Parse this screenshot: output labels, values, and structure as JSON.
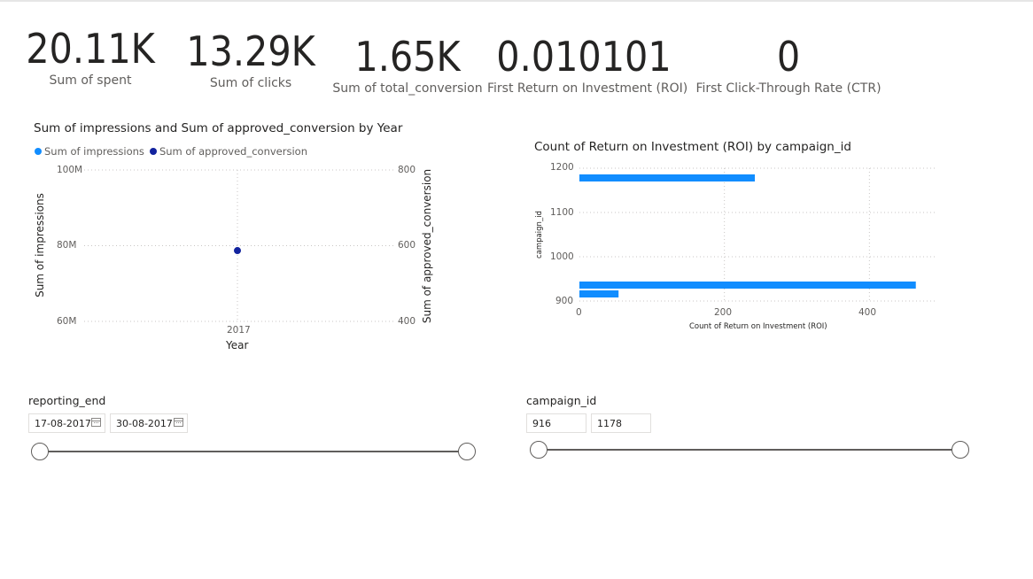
{
  "kpis": [
    {
      "value": "20.11K",
      "label": "Sum of spent"
    },
    {
      "value": "13.29K",
      "label": "Sum of clicks"
    },
    {
      "value": "1.65K",
      "label": "Sum of total_conversion"
    },
    {
      "value": "0.010101",
      "label": "First Return on Investment (ROI)"
    },
    {
      "value": "0",
      "label": "First Click-Through Rate (CTR)"
    }
  ],
  "colors": {
    "series1": "#118dff",
    "series2": "#12239e",
    "grid": "#c8c6c4"
  },
  "chart_data": [
    {
      "type": "scatter",
      "title": "Sum of impressions and Sum of approved_conversion by Year",
      "legend": [
        "Sum of impressions",
        "Sum of approved_conversion"
      ],
      "legend_position": "top-left",
      "xlabel": "Year",
      "ylabel": "Sum of impressions",
      "y2label": "Sum of approved_conversion",
      "x": [
        "2017"
      ],
      "yticks": [
        "100M",
        "80M",
        "60M"
      ],
      "y2ticks": [
        "800",
        "600",
        "400"
      ],
      "ylim": [
        60000000,
        100000000
      ],
      "y2lim": [
        400,
        800
      ],
      "series": [
        {
          "name": "Sum of impressions",
          "values": [
            null
          ]
        },
        {
          "name": "Sum of approved_conversion",
          "values": [
            587
          ]
        }
      ],
      "grid": true
    },
    {
      "type": "bar",
      "orientation": "horizontal",
      "title": "Count of Return on Investment (ROI) by campaign_id",
      "xlabel": "Count of Return on Investment (ROI)",
      "ylabel": "campaign_id",
      "xticks": [
        "0",
        "200",
        "400"
      ],
      "yticks": [
        "1200",
        "1100",
        "1000",
        "900"
      ],
      "xlim": [
        0,
        490
      ],
      "ylim": [
        900,
        1200
      ],
      "categories": [
        1178,
        936,
        916
      ],
      "values": [
        242,
        464,
        54
      ],
      "grid": true
    }
  ],
  "slicers": {
    "reporting_end": {
      "title": "reporting_end",
      "start": "17-08-2017",
      "end": "30-08-2017"
    },
    "campaign_id": {
      "title": "campaign_id",
      "start": "916",
      "end": "1178"
    }
  }
}
